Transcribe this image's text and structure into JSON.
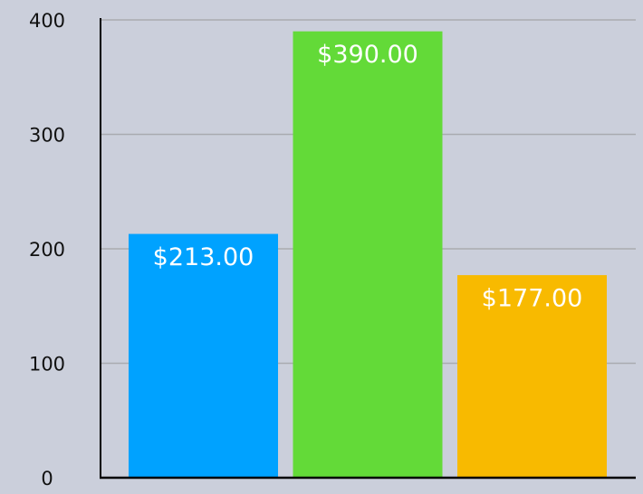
{
  "chart_data": {
    "type": "bar",
    "values": [
      213,
      390,
      177
    ],
    "value_labels": [
      "$213.00",
      "$390.00",
      "$177.00"
    ],
    "colors": [
      "#00a2ff",
      "#63da38",
      "#f8ba00"
    ],
    "ylim": [
      0,
      400
    ],
    "yticks": [
      0,
      100,
      200,
      300,
      400
    ],
    "grid": true
  }
}
